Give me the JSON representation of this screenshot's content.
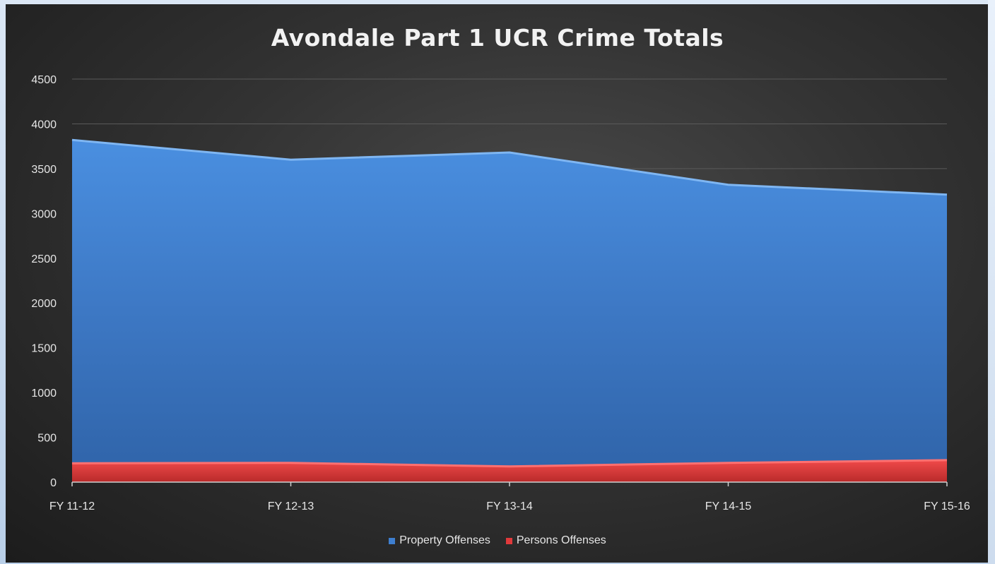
{
  "chart_data": {
    "type": "area",
    "title": "Avondale Part 1 UCR Crime Totals",
    "categories": [
      "FY 11-12",
      "FY 12-13",
      "FY 13-14",
      "FY 14-15",
      "FY 15-16"
    ],
    "series": [
      {
        "name": "Property Offenses",
        "values": [
          3820,
          3600,
          3680,
          3320,
          3210
        ],
        "color": "#3e7fd0"
      },
      {
        "name": "Persons Offenses",
        "values": [
          210,
          215,
          175,
          215,
          245
        ],
        "color": "#e0393b"
      }
    ],
    "stacking": "overlap",
    "ylim": [
      0,
      4500
    ],
    "yticks": [
      0,
      500,
      1000,
      1500,
      2000,
      2500,
      3000,
      3500,
      4000,
      4500
    ],
    "grid": true,
    "legend_position": "bottom"
  }
}
